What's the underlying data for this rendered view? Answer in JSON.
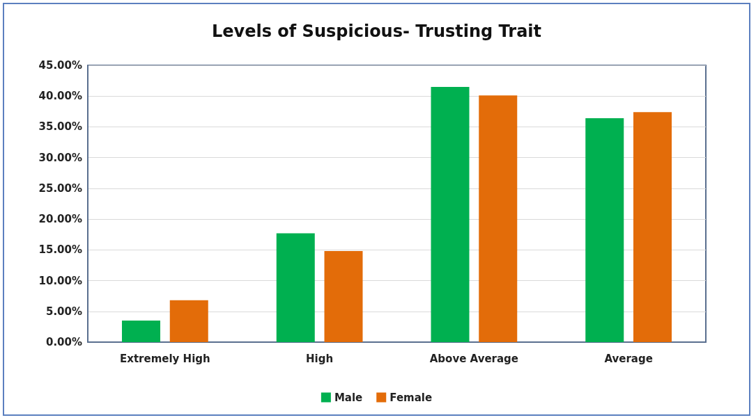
{
  "chart_data": {
    "type": "bar",
    "title": "Levels of Suspicious- Trusting Trait",
    "categories": [
      "Extremely High",
      "High",
      "Above Average",
      "Average"
    ],
    "series": [
      {
        "name": "Male",
        "color": "#00b050",
        "values": [
          3.5,
          17.7,
          41.5,
          36.4
        ]
      },
      {
        "name": "Female",
        "color": "#e36c09",
        "values": [
          6.8,
          14.8,
          40.1,
          37.4
        ]
      }
    ],
    "ylim": [
      0,
      45
    ],
    "yticks": [
      {
        "value": 0,
        "label": "0.00%"
      },
      {
        "value": 5,
        "label": "5.00%"
      },
      {
        "value": 10,
        "label": "10.00%"
      },
      {
        "value": 15,
        "label": "15.00%"
      },
      {
        "value": 20,
        "label": "20.00%"
      },
      {
        "value": 25,
        "label": "25.00%"
      },
      {
        "value": 30,
        "label": "30.00%"
      },
      {
        "value": 35,
        "label": "35.00%"
      },
      {
        "value": 40,
        "label": "40.00%"
      },
      {
        "value": 45,
        "label": "45.00%"
      }
    ],
    "grid": "y",
    "legend": "bottom"
  }
}
